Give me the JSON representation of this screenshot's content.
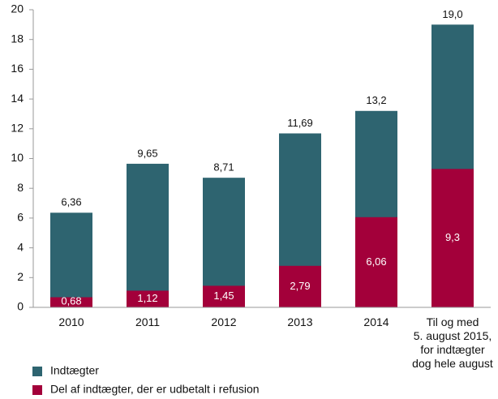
{
  "chart_data": {
    "type": "bar",
    "categories": [
      "2010",
      "2011",
      "2012",
      "2013",
      "2014",
      "Til og med\n5. august 2015,\nfor indtægter\ndog hele august"
    ],
    "series": [
      {
        "name": "Indtægter",
        "color": "#2e6470",
        "values": [
          6.36,
          9.65,
          8.71,
          11.69,
          13.2,
          19.0
        ],
        "value_labels": [
          "6,36",
          "9,65",
          "8,71",
          "11,69",
          "13,2",
          "19,0"
        ]
      },
      {
        "name": "Del af indtægter, der er udbetalt i refusion",
        "color": "#a3003a",
        "values": [
          0.68,
          1.12,
          1.45,
          2.79,
          6.06,
          9.3
        ],
        "value_labels": [
          "0,68",
          "1,12",
          "1,45",
          "2,79",
          "6,06",
          "9,3"
        ]
      }
    ],
    "overlap": true,
    "ylim": [
      0,
      20
    ],
    "yticks": [
      0,
      2,
      4,
      6,
      8,
      10,
      12,
      14,
      16,
      18,
      20
    ],
    "grid": false,
    "legend": "bottom"
  }
}
